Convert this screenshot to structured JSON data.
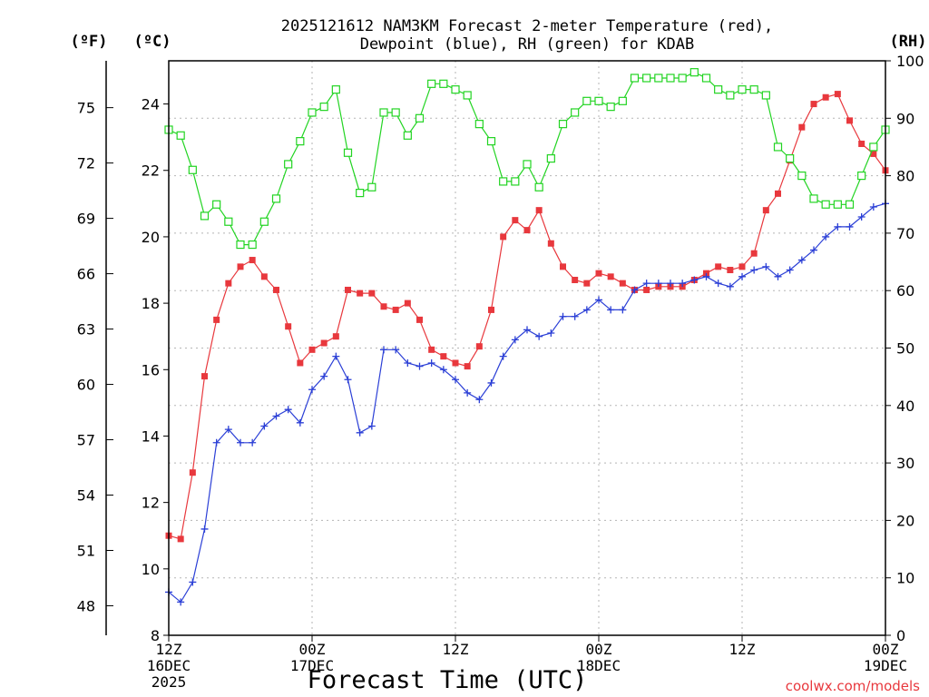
{
  "chart_data": {
    "type": "line",
    "title_line1": "2025121612 NAM3KM Forecast 2-meter Temperature (red),",
    "title_line2": "Dewpoint (blue), RH (green) for KDAB",
    "unit_left_outer": "(ºF)",
    "unit_left_inner": "(ºC)",
    "unit_right": "(RH)",
    "xlabel": "Forecast Time (UTC)",
    "watermark": "coolwx.com/models",
    "xlim": [
      0,
      60
    ],
    "ylim_c": [
      8,
      25.3
    ],
    "ylim_rh": [
      0,
      100
    ],
    "grid": true,
    "x_ticks": [
      {
        "x": 0,
        "line1": "12Z",
        "line2": "16DEC",
        "line3": "2025"
      },
      {
        "x": 12,
        "line1": "00Z",
        "line2": "17DEC",
        "line3": ""
      },
      {
        "x": 24,
        "line1": "12Z",
        "line2": "",
        "line3": ""
      },
      {
        "x": 36,
        "line1": "00Z",
        "line2": "18DEC",
        "line3": ""
      },
      {
        "x": 48,
        "line1": "12Z",
        "line2": "",
        "line3": ""
      },
      {
        "x": 60,
        "line1": "00Z",
        "line2": "19DEC",
        "line3": ""
      }
    ],
    "c_ticks": [
      8,
      10,
      12,
      14,
      16,
      18,
      20,
      22,
      24
    ],
    "f_ticks": [
      48,
      51,
      54,
      57,
      60,
      63,
      66,
      69,
      72,
      75
    ],
    "rh_ticks": [
      0,
      10,
      20,
      30,
      40,
      50,
      60,
      70,
      80,
      90,
      100
    ],
    "series": [
      {
        "name": "Temperature",
        "color": "#e8383d",
        "marker": "filled-square",
        "axis": "c",
        "points": [
          [
            0,
            11.0
          ],
          [
            1,
            10.9
          ],
          [
            2,
            12.9
          ],
          [
            3,
            15.8
          ],
          [
            4,
            17.5
          ],
          [
            5,
            18.6
          ],
          [
            6,
            19.1
          ],
          [
            7,
            19.3
          ],
          [
            8,
            18.8
          ],
          [
            9,
            18.4
          ],
          [
            10,
            17.3
          ],
          [
            11,
            16.2
          ],
          [
            12,
            16.6
          ],
          [
            13,
            16.8
          ],
          [
            14,
            17.0
          ],
          [
            15,
            18.4
          ],
          [
            16,
            18.3
          ],
          [
            17,
            18.3
          ],
          [
            18,
            17.9
          ],
          [
            19,
            17.8
          ],
          [
            20,
            18.0
          ],
          [
            21,
            17.5
          ],
          [
            22,
            16.6
          ],
          [
            23,
            16.4
          ],
          [
            24,
            16.2
          ],
          [
            25,
            16.1
          ],
          [
            26,
            16.7
          ],
          [
            27,
            17.8
          ],
          [
            28,
            20.0
          ],
          [
            29,
            20.5
          ],
          [
            30,
            20.2
          ],
          [
            31,
            20.8
          ],
          [
            32,
            19.8
          ],
          [
            33,
            19.1
          ],
          [
            34,
            18.7
          ],
          [
            35,
            18.6
          ],
          [
            36,
            18.9
          ],
          [
            37,
            18.8
          ],
          [
            38,
            18.6
          ],
          [
            39,
            18.4
          ],
          [
            40,
            18.4
          ],
          [
            41,
            18.5
          ],
          [
            42,
            18.5
          ],
          [
            43,
            18.5
          ],
          [
            44,
            18.7
          ],
          [
            45,
            18.9
          ],
          [
            46,
            19.1
          ],
          [
            47,
            19.0
          ],
          [
            48,
            19.1
          ],
          [
            49,
            19.5
          ],
          [
            50,
            20.8
          ],
          [
            51,
            21.3
          ],
          [
            52,
            22.3
          ],
          [
            53,
            23.3
          ],
          [
            54,
            24.0
          ],
          [
            55,
            24.2
          ],
          [
            56,
            24.3
          ],
          [
            57,
            23.5
          ],
          [
            58,
            22.8
          ],
          [
            59,
            22.5
          ],
          [
            60,
            22.0
          ]
        ]
      },
      {
        "name": "Dewpoint",
        "color": "#2b3fd6",
        "marker": "plus",
        "axis": "c",
        "points": [
          [
            0,
            9.3
          ],
          [
            1,
            9.0
          ],
          [
            2,
            9.6
          ],
          [
            3,
            11.2
          ],
          [
            4,
            13.8
          ],
          [
            5,
            14.2
          ],
          [
            6,
            13.8
          ],
          [
            7,
            13.8
          ],
          [
            8,
            14.3
          ],
          [
            9,
            14.6
          ],
          [
            10,
            14.8
          ],
          [
            11,
            14.4
          ],
          [
            12,
            15.4
          ],
          [
            13,
            15.8
          ],
          [
            14,
            16.4
          ],
          [
            15,
            15.7
          ],
          [
            16,
            14.1
          ],
          [
            17,
            14.3
          ],
          [
            18,
            16.6
          ],
          [
            19,
            16.6
          ],
          [
            20,
            16.2
          ],
          [
            21,
            16.1
          ],
          [
            22,
            16.2
          ],
          [
            23,
            16.0
          ],
          [
            24,
            15.7
          ],
          [
            25,
            15.3
          ],
          [
            26,
            15.1
          ],
          [
            27,
            15.6
          ],
          [
            28,
            16.4
          ],
          [
            29,
            16.9
          ],
          [
            30,
            17.2
          ],
          [
            31,
            17.0
          ],
          [
            32,
            17.1
          ],
          [
            33,
            17.6
          ],
          [
            34,
            17.6
          ],
          [
            35,
            17.8
          ],
          [
            36,
            18.1
          ],
          [
            37,
            17.8
          ],
          [
            38,
            17.8
          ],
          [
            39,
            18.4
          ],
          [
            40,
            18.6
          ],
          [
            41,
            18.6
          ],
          [
            42,
            18.6
          ],
          [
            43,
            18.6
          ],
          [
            44,
            18.7
          ],
          [
            45,
            18.8
          ],
          [
            46,
            18.6
          ],
          [
            47,
            18.5
          ],
          [
            48,
            18.8
          ],
          [
            49,
            19.0
          ],
          [
            50,
            19.1
          ],
          [
            51,
            18.8
          ],
          [
            52,
            19.0
          ],
          [
            53,
            19.3
          ],
          [
            54,
            19.6
          ],
          [
            55,
            20.0
          ],
          [
            56,
            20.3
          ],
          [
            57,
            20.3
          ],
          [
            58,
            20.6
          ],
          [
            59,
            20.9
          ],
          [
            60,
            21.0
          ]
        ]
      },
      {
        "name": "RH",
        "color": "#22d422",
        "marker": "open-square",
        "axis": "rh",
        "points": [
          [
            0,
            88
          ],
          [
            1,
            87
          ],
          [
            2,
            81
          ],
          [
            3,
            73
          ],
          [
            4,
            75
          ],
          [
            5,
            72
          ],
          [
            6,
            68
          ],
          [
            7,
            68
          ],
          [
            8,
            72
          ],
          [
            9,
            76
          ],
          [
            10,
            82
          ],
          [
            11,
            86
          ],
          [
            12,
            91
          ],
          [
            13,
            92
          ],
          [
            14,
            95
          ],
          [
            15,
            84
          ],
          [
            16,
            77
          ],
          [
            17,
            78
          ],
          [
            18,
            91
          ],
          [
            19,
            91
          ],
          [
            20,
            87
          ],
          [
            21,
            90
          ],
          [
            22,
            96
          ],
          [
            23,
            96
          ],
          [
            24,
            95
          ],
          [
            25,
            94
          ],
          [
            26,
            89
          ],
          [
            27,
            86
          ],
          [
            28,
            79
          ],
          [
            29,
            79
          ],
          [
            30,
            82
          ],
          [
            31,
            78
          ],
          [
            32,
            83
          ],
          [
            33,
            89
          ],
          [
            34,
            91
          ],
          [
            35,
            93
          ],
          [
            36,
            93
          ],
          [
            37,
            92
          ],
          [
            38,
            93
          ],
          [
            39,
            97
          ],
          [
            40,
            97
          ],
          [
            41,
            97
          ],
          [
            42,
            97
          ],
          [
            43,
            97
          ],
          [
            44,
            98
          ],
          [
            45,
            97
          ],
          [
            46,
            95
          ],
          [
            47,
            94
          ],
          [
            48,
            95
          ],
          [
            49,
            95
          ],
          [
            50,
            94
          ],
          [
            51,
            85
          ],
          [
            52,
            83
          ],
          [
            53,
            80
          ],
          [
            54,
            76
          ],
          [
            55,
            75
          ],
          [
            56,
            75
          ],
          [
            57,
            75
          ],
          [
            58,
            80
          ],
          [
            59,
            85
          ],
          [
            60,
            88
          ]
        ]
      }
    ]
  }
}
